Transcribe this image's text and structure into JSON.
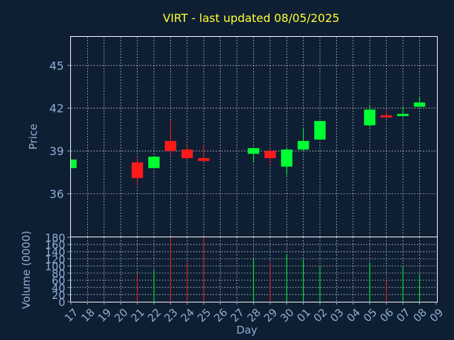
{
  "chart_data": [
    {
      "type": "candlestick",
      "title": "VIRT - last updated 08/05/2025",
      "ylabel": "Price",
      "ylim": [
        33,
        47
      ],
      "yticks": [
        36,
        39,
        42,
        45
      ],
      "x_tick_labels": [
        "17",
        "18",
        "19",
        "20",
        "21",
        "22",
        "23",
        "24",
        "25",
        "26",
        "27",
        "28",
        "29",
        "30",
        "01",
        "02",
        "03",
        "04",
        "05",
        "06",
        "07",
        "08",
        "09"
      ],
      "grid": true,
      "colors": {
        "up": "#00ff33",
        "down": "#ff1a1a",
        "background": "#0f1f33",
        "grid": "#ffffff",
        "text": "#8faed6",
        "title": "#ffff33"
      },
      "candles": [
        {
          "x": "17",
          "open": 37.8,
          "high": 38.4,
          "low": 37.8,
          "close": 38.4
        },
        {
          "x": "21",
          "open": 38.2,
          "high": 38.5,
          "low": 36.6,
          "close": 37.1
        },
        {
          "x": "22",
          "open": 37.8,
          "high": 38.6,
          "low": 37.8,
          "close": 38.6
        },
        {
          "x": "23",
          "open": 39.7,
          "high": 41.1,
          "low": 38.7,
          "close": 39.0
        },
        {
          "x": "24",
          "open": 39.1,
          "high": 39.4,
          "low": 38.4,
          "close": 38.5
        },
        {
          "x": "25",
          "open": 38.5,
          "high": 39.4,
          "low": 38.3,
          "close": 38.3
        },
        {
          "x": "28",
          "open": 38.8,
          "high": 39.2,
          "low": 38.2,
          "close": 39.2
        },
        {
          "x": "29",
          "open": 39.0,
          "high": 39.2,
          "low": 38.1,
          "close": 38.5
        },
        {
          "x": "30",
          "open": 37.9,
          "high": 39.2,
          "low": 37.3,
          "close": 39.1
        },
        {
          "x": "01",
          "open": 39.1,
          "high": 40.6,
          "low": 39.0,
          "close": 39.7
        },
        {
          "x": "02",
          "open": 39.8,
          "high": 41.1,
          "low": 39.8,
          "close": 41.1
        },
        {
          "x": "05",
          "open": 40.8,
          "high": 42.2,
          "low": 40.7,
          "close": 41.9
        },
        {
          "x": "06",
          "open": 41.5,
          "high": 41.9,
          "low": 41.3,
          "close": 41.4
        },
        {
          "x": "07",
          "open": 41.5,
          "high": 42.1,
          "low": 41.5,
          "close": 41.6
        },
        {
          "x": "08",
          "open": 42.1,
          "high": 42.8,
          "low": 42.1,
          "close": 42.4
        }
      ]
    },
    {
      "type": "bar",
      "ylabel": "Volume (0000)",
      "xlabel": "Day",
      "ylim": [
        0,
        180
      ],
      "yticks": [
        0,
        20,
        40,
        60,
        80,
        100,
        120,
        140,
        160,
        180
      ],
      "bars": [
        {
          "x": "21",
          "value": 75,
          "dir": "down"
        },
        {
          "x": "22",
          "value": 88,
          "dir": "up"
        },
        {
          "x": "23",
          "value": 180,
          "dir": "down"
        },
        {
          "x": "24",
          "value": 112,
          "dir": "down"
        },
        {
          "x": "25",
          "value": 180,
          "dir": "down"
        },
        {
          "x": "28",
          "value": 120,
          "dir": "up"
        },
        {
          "x": "29",
          "value": 110,
          "dir": "down"
        },
        {
          "x": "30",
          "value": 133,
          "dir": "up"
        },
        {
          "x": "01",
          "value": 118,
          "dir": "up"
        },
        {
          "x": "02",
          "value": 97,
          "dir": "up"
        },
        {
          "x": "05",
          "value": 110,
          "dir": "up"
        },
        {
          "x": "06",
          "value": 60,
          "dir": "down"
        },
        {
          "x": "07",
          "value": 100,
          "dir": "up"
        },
        {
          "x": "08",
          "value": 78,
          "dir": "up"
        }
      ]
    }
  ]
}
